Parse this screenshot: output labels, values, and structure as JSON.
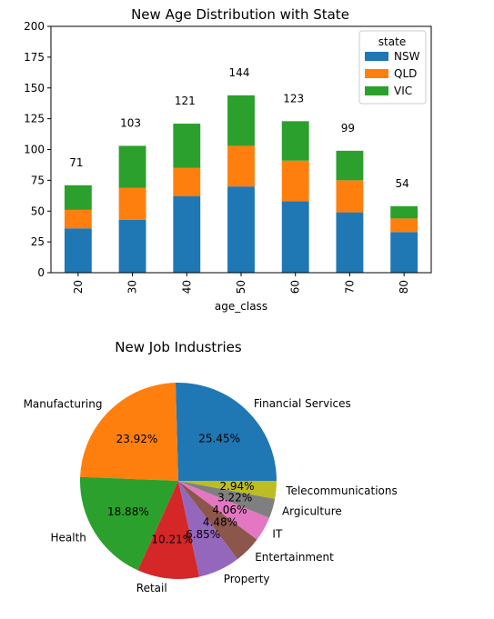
{
  "chart_data": [
    {
      "type": "bar",
      "stacked": true,
      "title": "New Age Distribution with State",
      "xlabel": "age_class",
      "ylabel": "",
      "categories": [
        "20",
        "30",
        "40",
        "50",
        "60",
        "70",
        "80"
      ],
      "series": [
        {
          "name": "NSW",
          "color": "#1f77b4",
          "values": [
            36,
            43,
            62,
            70,
            58,
            49,
            33
          ]
        },
        {
          "name": "QLD",
          "color": "#ff7f0e",
          "values": [
            15,
            26,
            23,
            33,
            33,
            26,
            11
          ]
        },
        {
          "name": "VIC",
          "color": "#2ca02c",
          "values": [
            20,
            34,
            36,
            41,
            32,
            24,
            10
          ]
        }
      ],
      "totals": [
        71,
        103,
        121,
        144,
        123,
        99,
        54
      ],
      "yticks": [
        "0",
        "25",
        "50",
        "75",
        "100",
        "125",
        "150",
        "175",
        "200"
      ],
      "ylim": [
        0,
        200
      ],
      "legend": {
        "title": "state",
        "placement": "top-right"
      }
    },
    {
      "type": "pie",
      "title": "New Job Industries",
      "slices": [
        {
          "label": "Financial Services",
          "pct": "25.45%",
          "value": 25.45,
          "color": "#1f77b4"
        },
        {
          "label": "Manufacturing",
          "pct": "23.92%",
          "value": 23.92,
          "color": "#ff7f0e"
        },
        {
          "label": "Health",
          "pct": "18.88%",
          "value": 18.88,
          "color": "#2ca02c"
        },
        {
          "label": "Retail",
          "pct": "10.21%",
          "value": 10.21,
          "color": "#d62728"
        },
        {
          "label": "Property",
          "pct": "6.85%",
          "value": 6.85,
          "color": "#9467bd"
        },
        {
          "label": "Entertainment",
          "pct": "4.48%",
          "value": 4.48,
          "color": "#8c564b"
        },
        {
          "label": "IT",
          "pct": "4.06%",
          "value": 4.06,
          "color": "#e377c2"
        },
        {
          "label": "Argiculture",
          "pct": "3.22%",
          "value": 3.22,
          "color": "#7f7f7f"
        },
        {
          "label": "Telecommunications",
          "pct": "2.94%",
          "value": 2.94,
          "color": "#bcbd22"
        }
      ]
    }
  ]
}
